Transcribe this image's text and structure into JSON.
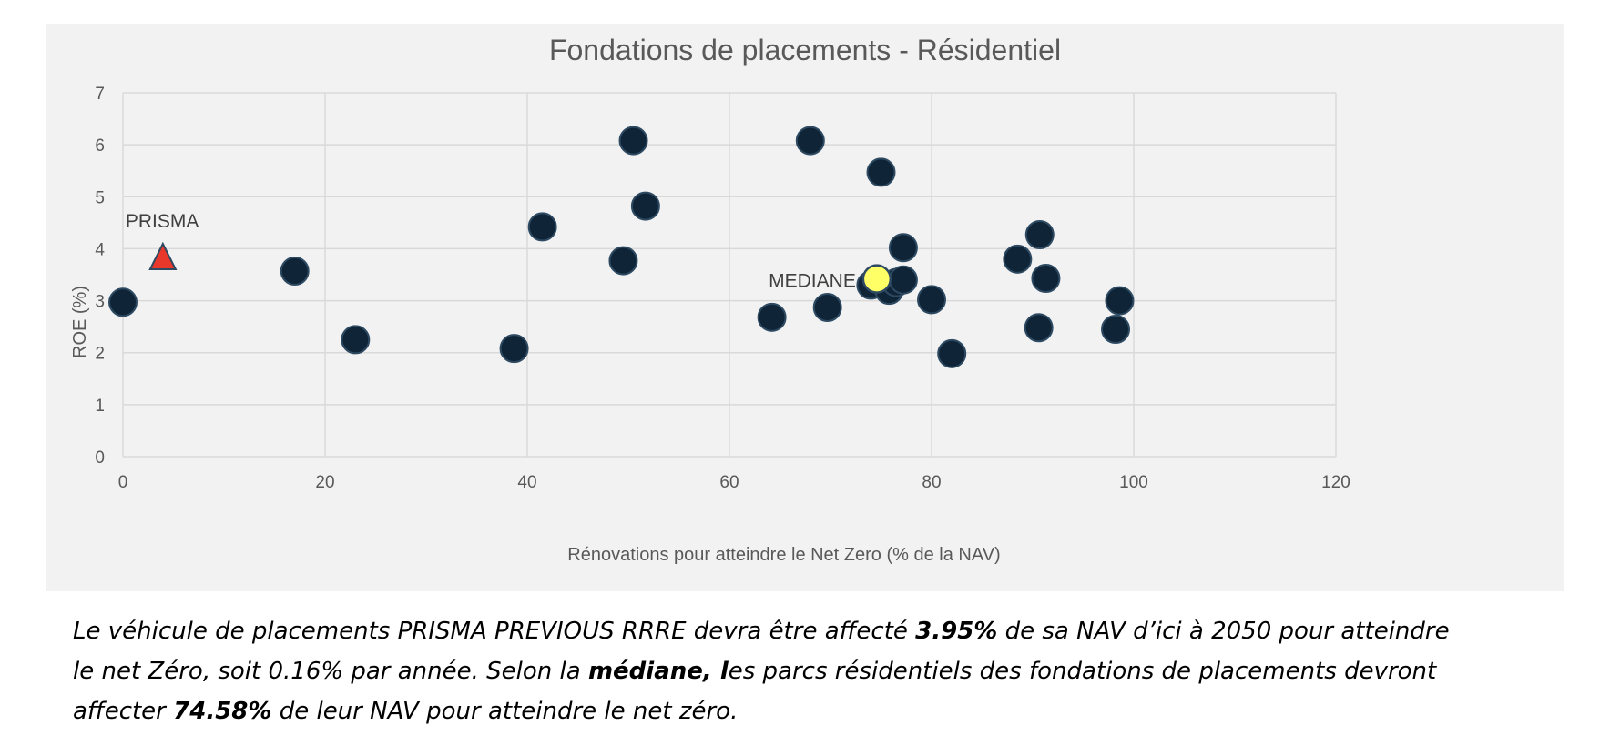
{
  "chart_data": {
    "type": "scatter",
    "title": "Fondations de placements - Résidentiel",
    "xlabel": "Rénovations pour atteindre le Net Zero (% de la NAV)",
    "ylabel": "ROE (%)",
    "xlim": [
      0,
      120
    ],
    "ylim": [
      0,
      7
    ],
    "xticks": [
      0,
      20,
      40,
      60,
      80,
      100,
      120
    ],
    "yticks": [
      0,
      1,
      2,
      3,
      4,
      5,
      6,
      7
    ],
    "grid": true,
    "colors": {
      "points": "#0f2537",
      "prisma": "#e8372b",
      "mediane": "#ffff66",
      "marker_border": "#2e4a62"
    },
    "series": [
      {
        "marker": "circle",
        "x": [
          0,
          17,
          23,
          38.7,
          41.5,
          49.5,
          50.5,
          51.7,
          64.2,
          68,
          69.7,
          74,
          75,
          75.8,
          76.5,
          77.2,
          77.2,
          80,
          82,
          88.5,
          90.6,
          90.7,
          91.3,
          98.2,
          98.6
        ],
        "y": [
          2.97,
          3.57,
          2.25,
          2.08,
          4.42,
          3.77,
          6.08,
          4.82,
          2.68,
          6.08,
          2.87,
          3.3,
          5.47,
          3.2,
          3.35,
          4.02,
          3.4,
          3.02,
          1.98,
          3.8,
          2.48,
          4.27,
          3.43,
          2.45,
          3.0
        ]
      },
      {
        "name": "PRISMA",
        "marker": "triangle",
        "x": [
          3.95
        ],
        "y": [
          3.85
        ]
      },
      {
        "name": "MEDIANE",
        "marker": "circle",
        "x": [
          74.58
        ],
        "y": [
          3.42
        ]
      }
    ],
    "annotations": [
      {
        "text": "PRISMA"
      },
      {
        "text": "MEDIANE"
      }
    ]
  },
  "caption": {
    "line1": [
      {
        "text": "Le véhicule de placements PRISMA PREVIOUS RRRE devra être affecté ",
        "bold": false
      },
      {
        "text": "3.95%",
        "bold": true
      },
      {
        "text": " de sa NAV d’ici à 2050 pour atteindre",
        "bold": false
      }
    ],
    "line2": [
      {
        "text": "le net Zéro, soit 0.16% par année. Selon la ",
        "bold": false
      },
      {
        "text": "médiane, l",
        "bold": true
      },
      {
        "text": "es parcs résidentiels des fondations de placements devront",
        "bold": false
      }
    ],
    "line3": [
      {
        "text": "affecter ",
        "bold": false
      },
      {
        "text": "74.58%",
        "bold": true
      },
      {
        "text": " de leur NAV pour atteindre le net zéro.",
        "bold": false
      }
    ]
  }
}
